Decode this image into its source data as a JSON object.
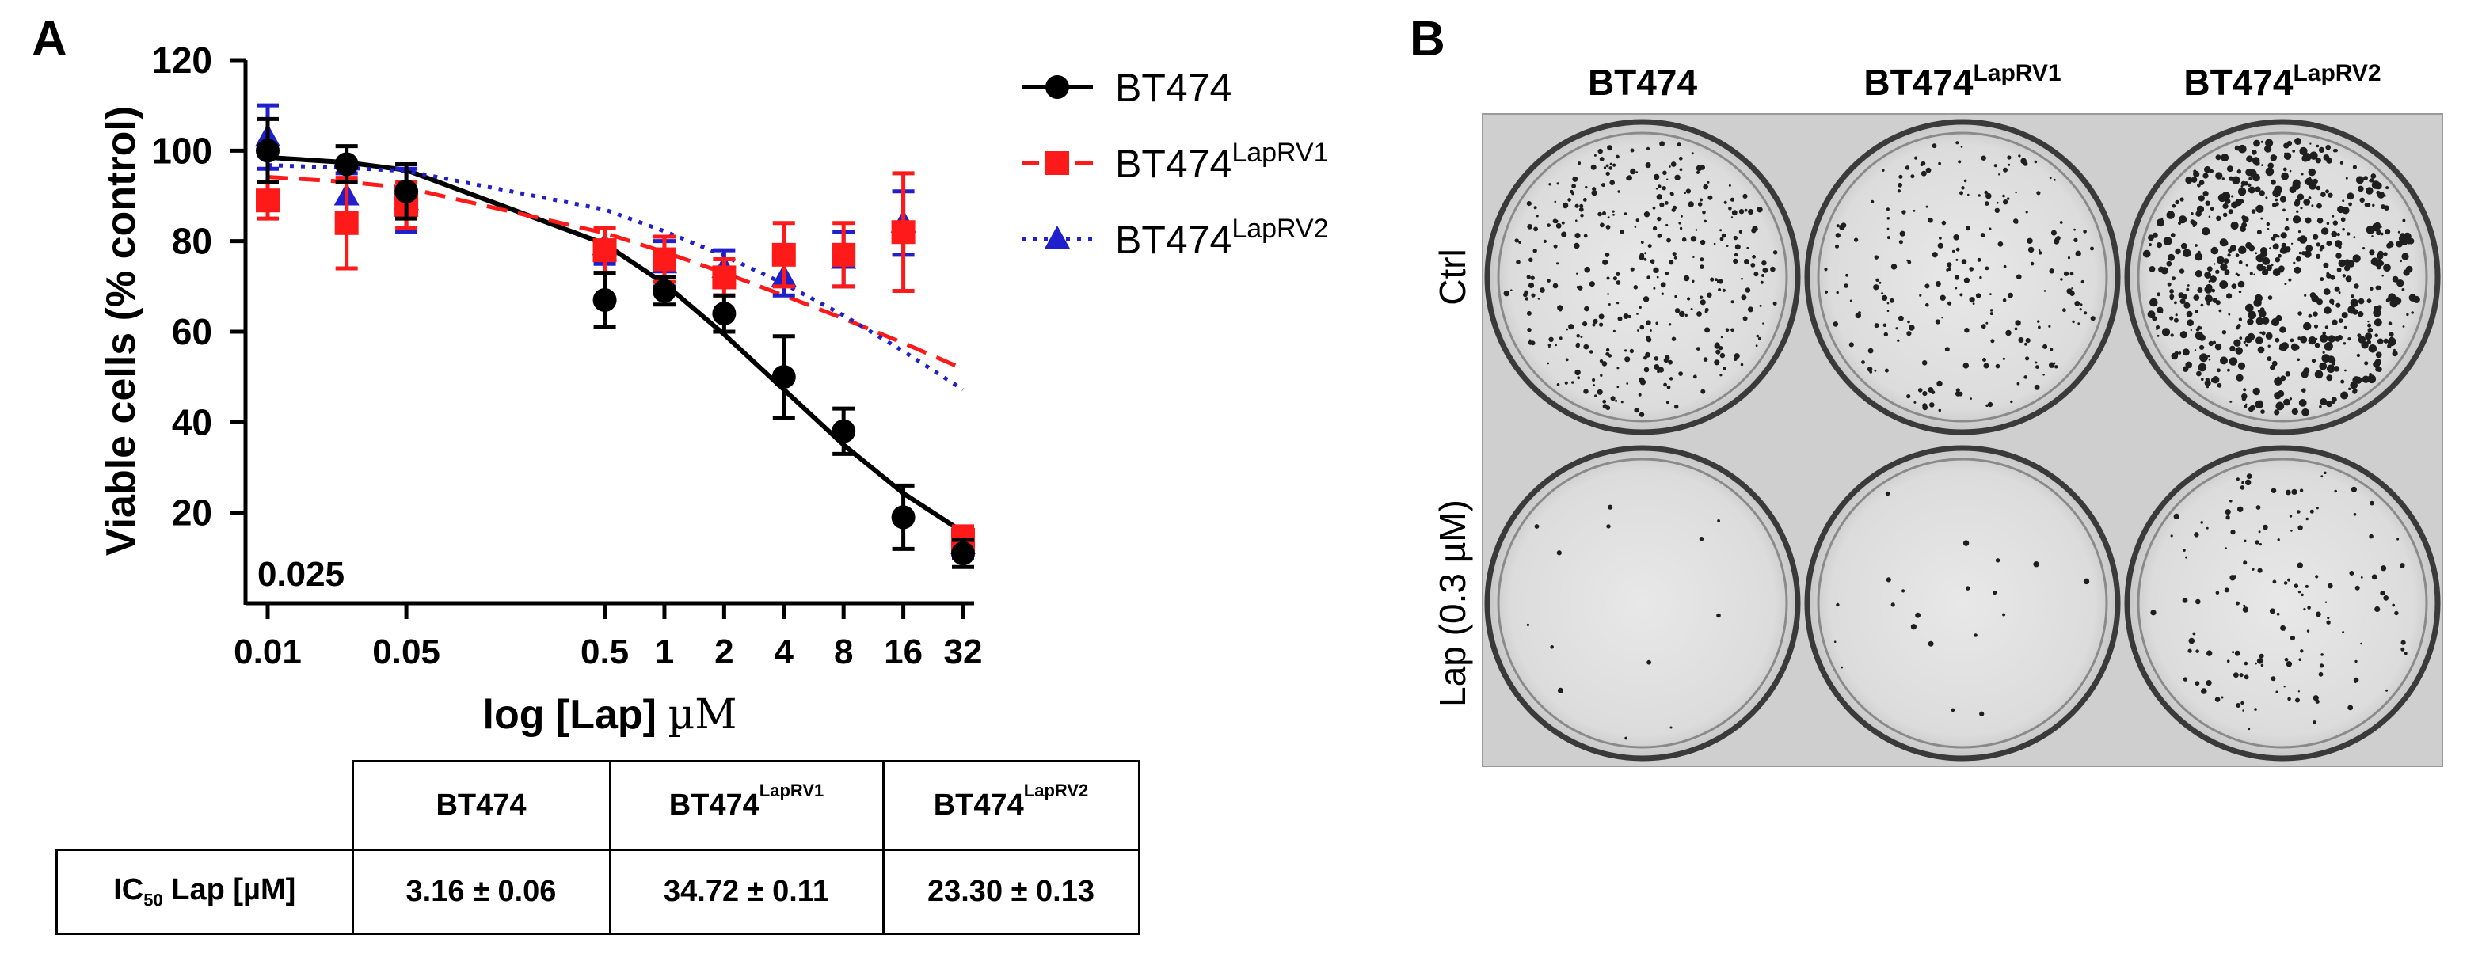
{
  "panel_a": {
    "letter": "A",
    "chart_data": {
      "type": "line",
      "xlabel_main": "log [Lap] ",
      "xlabel_unit": "µM",
      "ylabel": "Viable cells (% control)",
      "y_ticks": [
        20,
        40,
        60,
        80,
        100,
        120
      ],
      "ylim": [
        0,
        120
      ],
      "x_ticks": [
        {
          "value": 0.01,
          "label": "0.01"
        },
        {
          "value": 0.05,
          "label": "0.05"
        },
        {
          "value": 0.5,
          "label": "0.5"
        },
        {
          "value": 1,
          "label": "1"
        },
        {
          "value": 2,
          "label": "2"
        },
        {
          "value": 4,
          "label": "4"
        },
        {
          "value": 8,
          "label": "8"
        },
        {
          "value": 16,
          "label": "16"
        },
        {
          "value": 32,
          "label": "32"
        }
      ],
      "x_scale_note": "0.025",
      "x": [
        0.01,
        0.025,
        0.05,
        0.5,
        1,
        2,
        4,
        8,
        16,
        32
      ],
      "series": [
        {
          "key": "bt474",
          "name": "BT474",
          "name_sup": "",
          "color": "#000000",
          "marker": "circle",
          "values": [
            100,
            97,
            91,
            67,
            69,
            64,
            50,
            38,
            19,
            11
          ],
          "errors": [
            7,
            4,
            6,
            6,
            3,
            4,
            9,
            5,
            7,
            3
          ],
          "fit": [
            98.5,
            97.4,
            95.7,
            79.4,
            70.6,
            59.4,
            47.2,
            35.0,
            24.3,
            15.7
          ]
        },
        {
          "key": "rv1",
          "name": "BT474",
          "name_sup": "LapRV1",
          "color": "#ff1a1a",
          "marker": "square",
          "values": [
            89,
            84,
            88,
            78,
            76,
            72,
            77,
            77,
            82,
            14
          ],
          "errors": [
            4,
            10,
            5,
            5,
            5,
            4,
            7,
            7,
            13,
            3
          ],
          "fit": [
            94.2,
            93.1,
            91.8,
            81.8,
            77.6,
            73.0,
            68.0,
            62.9,
            57.5,
            51.8
          ]
        },
        {
          "key": "rv2",
          "name": "BT474",
          "name_sup": "LapRV2",
          "color": "#1f1fcc",
          "marker": "triangle",
          "values": [
            103,
            90,
            89,
            79,
            75,
            74,
            72,
            76,
            84,
            13
          ],
          "errors": [
            7,
            5,
            7,
            4,
            5,
            4,
            4,
            6,
            7,
            3
          ],
          "fit": [
            96.8,
            96.2,
            95.5,
            87.0,
            82.2,
            76.8,
            70.6,
            63.6,
            55.7,
            47.2
          ]
        }
      ],
      "legend_position": "top-right"
    }
  },
  "panel_b": {
    "letter": "B",
    "columns": [
      {
        "base": "BT474",
        "sup": ""
      },
      {
        "base": "BT474",
        "sup": "LapRV1"
      },
      {
        "base": "BT474",
        "sup": "LapRV2"
      }
    ],
    "rows": [
      "Ctrl",
      "Lap (0.3 µM)"
    ],
    "colony_density": [
      [
        0.55,
        0.35,
        0.95
      ],
      [
        0.02,
        0.03,
        0.22
      ]
    ]
  },
  "table": {
    "headers": [
      {
        "base": "BT474",
        "sup": ""
      },
      {
        "base": "BT474",
        "sup": "LapRV1"
      },
      {
        "base": "BT474",
        "sup": "LapRV2"
      }
    ],
    "row_label_pre": "IC",
    "row_label_sub": "50",
    "row_label_post": " Lap [µM]",
    "values": [
      "3.16 ± 0.06",
      "34.72 ± 0.11",
      "23.30 ± 0.13"
    ]
  }
}
